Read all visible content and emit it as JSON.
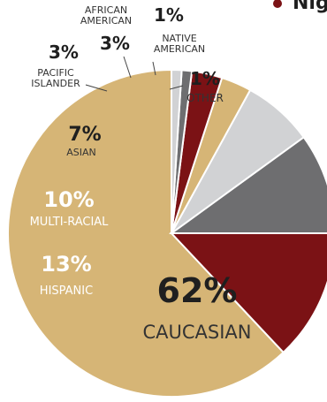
{
  "legend": {
    "label": "Nig"
  },
  "chart_data": {
    "type": "pie",
    "slices": [
      {
        "label": "CAUCASIAN",
        "label_lines": [
          "CAUCASIAN"
        ],
        "pct_text": "62%",
        "value": 62,
        "color": "#d6b576"
      },
      {
        "label": "HISPANIC",
        "label_lines": [
          "HISPANIC"
        ],
        "pct_text": "13%",
        "value": 13,
        "color": "#7b1215"
      },
      {
        "label": "MULTI-RACIAL",
        "label_lines": [
          "MULTI-RACIAL"
        ],
        "pct_text": "10%",
        "value": 10,
        "color": "#6e6e70"
      },
      {
        "label": "ASIAN",
        "label_lines": [
          "ASIAN"
        ],
        "pct_text": "7%",
        "value": 7,
        "color": "#d1d2d4"
      },
      {
        "label": "PACIFIC ISLANDER",
        "label_lines": [
          "PACIFIC",
          "ISLANDER"
        ],
        "pct_text": "3%",
        "value": 3,
        "color": "#d6b576"
      },
      {
        "label": "AFRICAN AMERICAN",
        "label_lines": [
          "AFRICAN",
          "AMERICAN"
        ],
        "pct_text": "3%",
        "value": 3,
        "color": "#7b1215"
      },
      {
        "label": "NATIVE AMERICAN",
        "label_lines": [
          "NATIVE",
          "AMERICAN"
        ],
        "pct_text": "1%",
        "value": 1,
        "color": "#6e6e70"
      },
      {
        "label": "OTHER",
        "label_lines": [
          "OTHER"
        ],
        "pct_text": "1%",
        "value": 1,
        "color": "#d1d2d4"
      }
    ],
    "legend_color": "#7b1215"
  }
}
